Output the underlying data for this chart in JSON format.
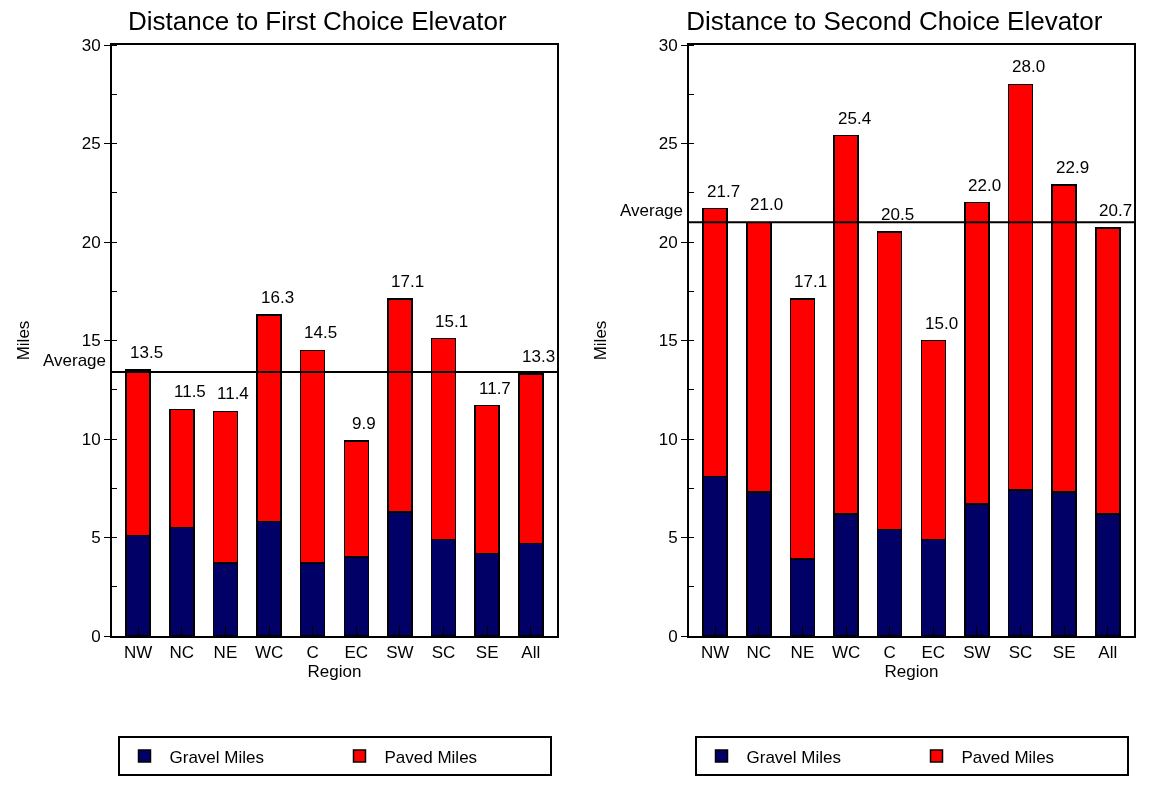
{
  "chart_data": [
    {
      "type": "bar",
      "title": "Distance to First Choice Elevator",
      "xlabel": "Region",
      "ylabel": "Miles",
      "categories": [
        "NW",
        "NC",
        "NE",
        "WC",
        "C",
        "EC",
        "SW",
        "SC",
        "SE",
        "All"
      ],
      "stacked": true,
      "series": [
        {
          "name": "Gravel Miles",
          "color": "#000066",
          "values": [
            5.1,
            5.5,
            3.7,
            5.8,
            3.7,
            4.0,
            6.3,
            4.9,
            4.2,
            4.7
          ]
        },
        {
          "name": "Paved Miles",
          "color": "#ff0000",
          "values": [
            8.4,
            6.0,
            7.7,
            10.5,
            10.8,
            5.9,
            10.8,
            10.2,
            7.5,
            8.6
          ]
        }
      ],
      "totals": [
        "13.5",
        "11.5",
        "11.4",
        "16.3",
        "14.5",
        "9.9",
        "17.1",
        "15.1",
        "11.7",
        "13.3"
      ],
      "ylim": [
        0,
        30
      ],
      "yticks": [
        0,
        5,
        10,
        15,
        20,
        25,
        30
      ],
      "grid": false,
      "legend": "bottom",
      "ref_lines": [
        {
          "axis": "y",
          "value": 13.4,
          "label": "Average",
          "color": "#000000"
        }
      ]
    },
    {
      "type": "bar",
      "title": "Distance to Second Choice Elevator",
      "xlabel": "Region",
      "ylabel": "Miles",
      "categories": [
        "NW",
        "NC",
        "NE",
        "WC",
        "C",
        "EC",
        "SW",
        "SC",
        "SE",
        "All"
      ],
      "stacked": true,
      "series": [
        {
          "name": "Gravel Miles",
          "color": "#000066",
          "values": [
            8.1,
            7.3,
            3.9,
            6.2,
            5.4,
            4.9,
            6.7,
            7.4,
            7.3,
            6.2
          ]
        },
        {
          "name": "Paved Miles",
          "color": "#ff0000",
          "values": [
            13.6,
            13.7,
            13.2,
            19.2,
            15.1,
            10.1,
            15.3,
            20.6,
            15.6,
            14.5
          ]
        }
      ],
      "totals": [
        "21.7",
        "21.0",
        "17.1",
        "25.4",
        "20.5",
        "15.0",
        "22.0",
        "28.0",
        "22.9",
        "20.7"
      ],
      "ylim": [
        0,
        30
      ],
      "yticks": [
        0,
        5,
        10,
        15,
        20,
        25,
        30
      ],
      "grid": false,
      "legend": "bottom",
      "ref_lines": [
        {
          "axis": "y",
          "value": 21.0,
          "label": "Average",
          "color": "#000000"
        }
      ]
    }
  ]
}
